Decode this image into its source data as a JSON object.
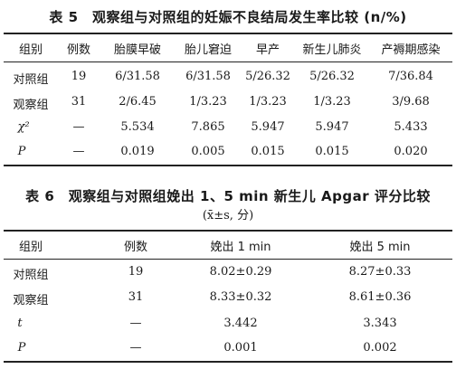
{
  "table5": {
    "title": "表 5　观察组与对照组的妊娠不良结局发生率比较 (n/%)",
    "headers": [
      "组别",
      "例数",
      "胎膜早破",
      "胎儿窘迫",
      "早产",
      "新生儿肺炎",
      "产褥期感染"
    ],
    "rows": [
      [
        "对照组",
        "19",
        "6/31.58",
        "6/31.58",
        "5/26.32",
        "5/26.32",
        "7/36.84"
      ],
      [
        "观察组",
        "31",
        "2/6.45",
        "1/3.23",
        "1/3.23",
        "1/3.23",
        "3/9.68"
      ],
      [
        "χ²",
        "—",
        "5.534",
        "7.865",
        "5.947",
        "5.947",
        "5.433"
      ],
      [
        "P",
        "—",
        "0.019",
        "0.005",
        "0.015",
        "0.015",
        "0.020"
      ]
    ]
  },
  "table6": {
    "title": "表 6　观察组与对照组娩出 1、5 min 新生儿 Apgar 评分比较",
    "subtitle": "(x̄±s, 分)",
    "headers": [
      "组别",
      "例数",
      "娩出 1 min",
      "娩出 5 min"
    ],
    "rows": [
      [
        "对照组",
        "19",
        "8.02±0.29",
        "8.27±0.33"
      ],
      [
        "观察组",
        "31",
        "8.33±0.32",
        "8.61±0.36"
      ],
      [
        "t",
        "—",
        "3.442",
        "3.343"
      ],
      [
        "P",
        "—",
        "0.001",
        "0.002"
      ]
    ]
  }
}
